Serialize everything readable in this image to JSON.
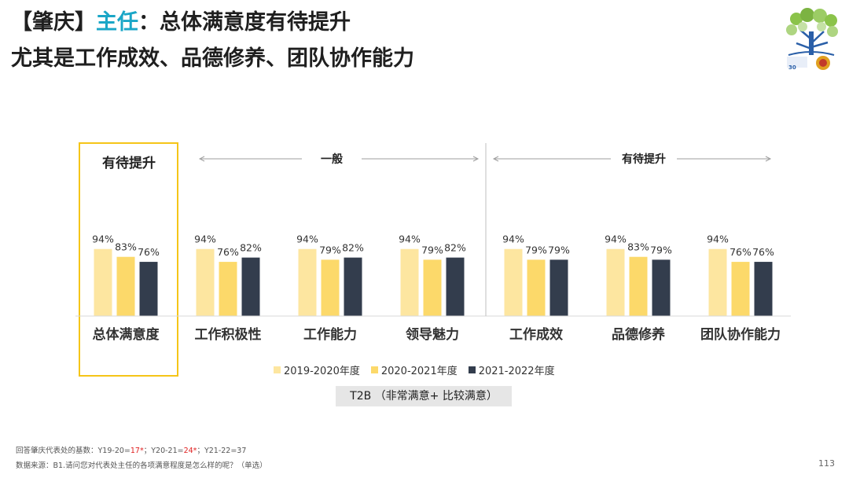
{
  "header": {
    "title_prefix": "【肇庆】",
    "title_accent": "主任",
    "title_rest": "：总体满意度有待提升",
    "subtitle": "尤其是工作成效、品德修养、团队协作能力"
  },
  "colors": {
    "series1": "#fde6a0",
    "series2": "#fcd96a",
    "series3": "#333d4d",
    "accent": "#1aa6c7",
    "highlight_box": "#f5c518"
  },
  "chart_data": {
    "type": "bar",
    "categories": [
      "总体满意度",
      "工作积极性",
      "工作能力",
      "领导魅力",
      "工作成效",
      "品德修养",
      "团队协作能力"
    ],
    "series": [
      {
        "name": "2019-2020年度",
        "values": [
          94,
          94,
          94,
          94,
          94,
          94,
          94
        ]
      },
      {
        "name": "2020-2021年度",
        "values": [
          83,
          76,
          79,
          79,
          79,
          83,
          76
        ]
      },
      {
        "name": "2021-2022年度",
        "values": [
          76,
          82,
          82,
          82,
          79,
          79,
          76
        ]
      }
    ],
    "data_labels": [
      [
        "94%",
        "83%",
        "76%"
      ],
      [
        "94%",
        "76%",
        "82%"
      ],
      [
        "94%",
        "79%",
        "82%"
      ],
      [
        "94%",
        "79%",
        "82%"
      ],
      [
        "94%",
        "79%",
        "79%"
      ],
      [
        "94%",
        "83%",
        "79%"
      ],
      [
        "94%",
        "76%",
        "76%"
      ]
    ],
    "groups": [
      {
        "label": "有待提升",
        "categories": [
          "总体满意度"
        ],
        "style": "box"
      },
      {
        "label": "一般",
        "categories": [
          "工作积极性",
          "工作能力",
          "领导魅力"
        ],
        "style": "arrow"
      },
      {
        "label": "有待提升",
        "categories": [
          "工作成效",
          "品德修养",
          "团队协作能力"
        ],
        "style": "arrow"
      }
    ],
    "ylim": [
      0,
      100
    ],
    "legend_position": "bottom",
    "grid": false
  },
  "metric_label": "T2B （非常满意+ 比较满意）",
  "footer": {
    "base_prefix": "回答肇庆代表处的基数：Y19-20=",
    "base_y19": "17*",
    "base_sep1": "；Y20-21=",
    "base_y20": "24*",
    "base_sep2": "；Y21-22=37",
    "source": "数据来源：B1.请问您对代表处主任的各项满意程度是怎么样的呢？（单选）"
  },
  "page_number": "113"
}
